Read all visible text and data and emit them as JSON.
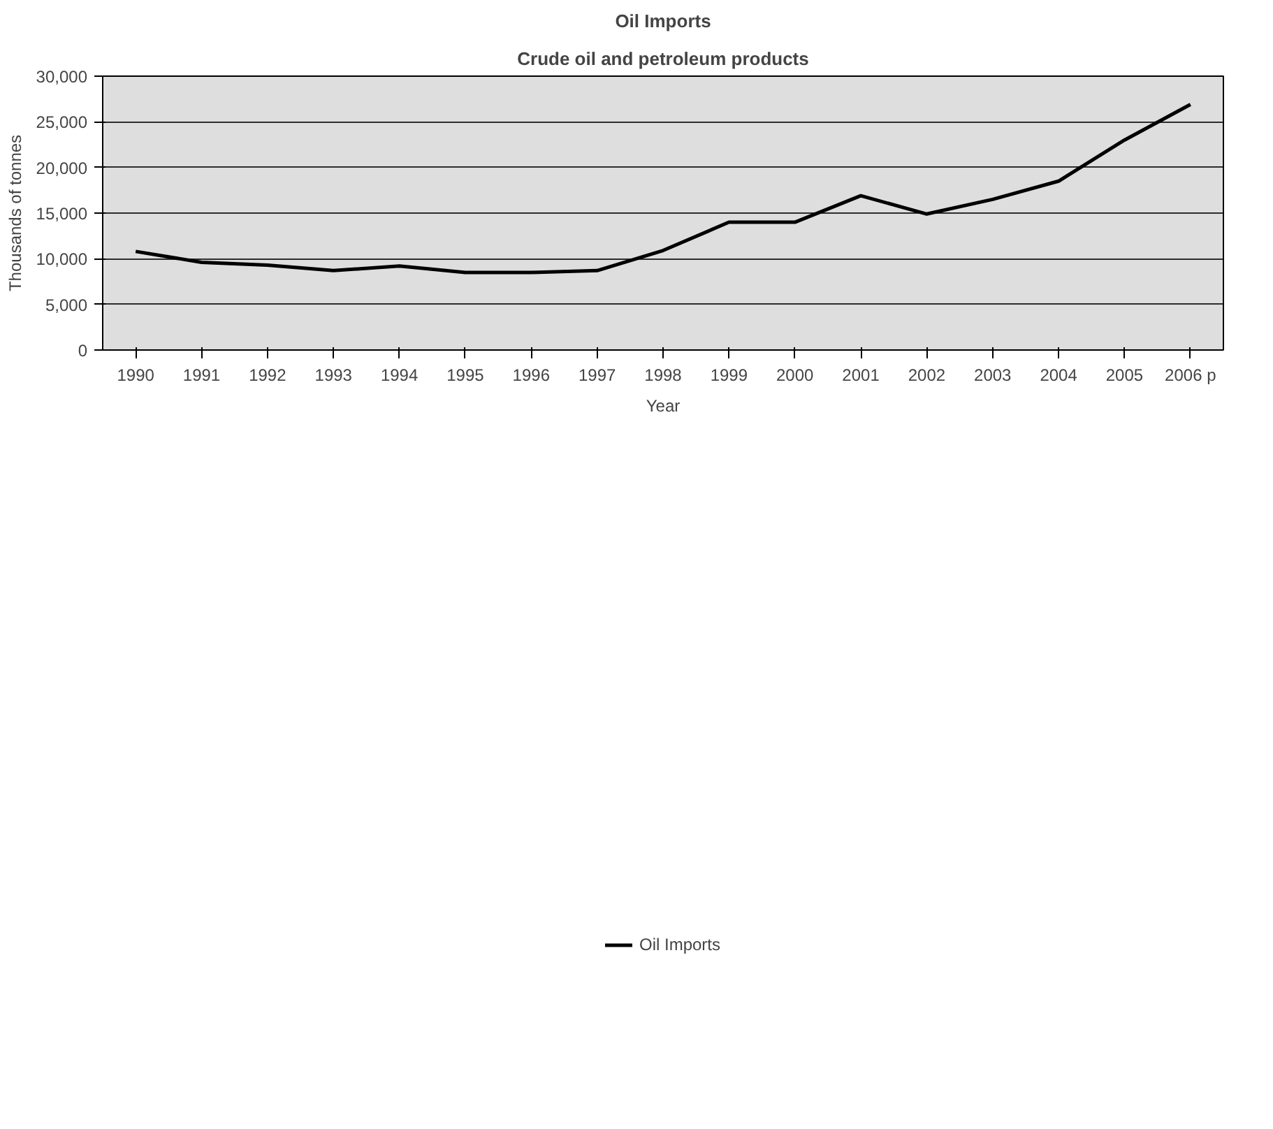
{
  "chart_data": {
    "type": "line",
    "title": "Oil Imports",
    "subtitle": "Crude oil and petroleum products",
    "xlabel": "Year",
    "ylabel": "Thousands of tonnes",
    "categories": [
      "1990",
      "1991",
      "1992",
      "1993",
      "1994",
      "1995",
      "1996",
      "1997",
      "1998",
      "1999",
      "2000",
      "2001",
      "2002",
      "2003",
      "2004",
      "2005",
      "2006 p"
    ],
    "series": [
      {
        "name": "Oil Imports",
        "color": "#000000",
        "values": [
          10800,
          9600,
          9300,
          8700,
          9200,
          8500,
          8500,
          8700,
          10900,
          14000,
          14000,
          16900,
          14900,
          16500,
          18500,
          23000,
          26900
        ]
      }
    ],
    "ylim": [
      0,
      30000
    ],
    "yticks": [
      {
        "value": 0,
        "label": "0"
      },
      {
        "value": 5000,
        "label": "5,000"
      },
      {
        "value": 10000,
        "label": "10,000"
      },
      {
        "value": 15000,
        "label": "15,000"
      },
      {
        "value": 20000,
        "label": "20,000"
      },
      {
        "value": 25000,
        "label": "25,000"
      },
      {
        "value": 30000,
        "label": "30,000"
      }
    ],
    "grid": "y",
    "legend": "bottom",
    "marker": "none",
    "line_style": "solid"
  }
}
